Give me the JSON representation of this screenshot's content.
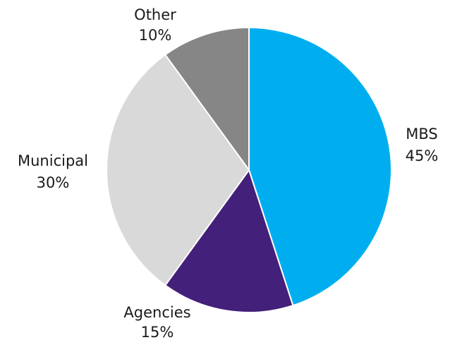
{
  "chart_data": {
    "type": "pie",
    "slices": [
      {
        "label": "MBS",
        "value": 45,
        "value_label": "45%",
        "color": "#00AEEF"
      },
      {
        "label": "Agencies",
        "value": 15,
        "value_label": "15%",
        "color": "#43207A"
      },
      {
        "label": "Municipal",
        "value": 30,
        "value_label": "30%",
        "color": "#D9D9D9"
      },
      {
        "label": "Other",
        "value": 10,
        "value_label": "10%",
        "color": "#868686"
      }
    ],
    "start_angle": "12 o'clock",
    "direction": "clockwise",
    "legend": "none",
    "labels": "outside"
  }
}
